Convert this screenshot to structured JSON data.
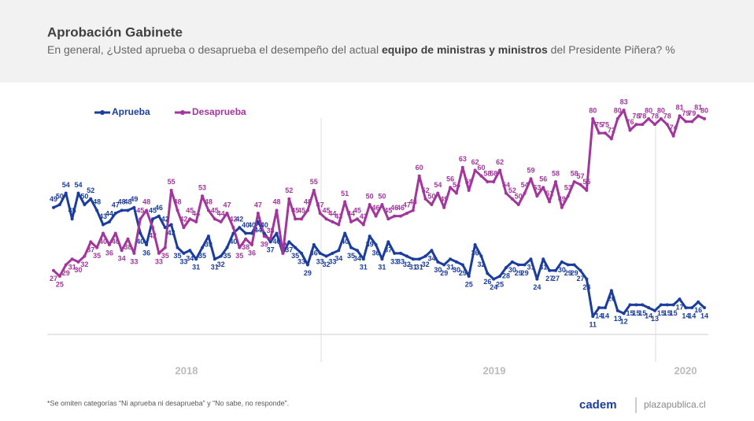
{
  "chart_data": {
    "type": "line",
    "title": "Aprobación Gabinete",
    "subtitle": [
      "En general, ¿Usted aprueba o desaprueba el desempeño del actual ",
      "equipo de ministras y ministros",
      " del Presidente Piñera? %"
    ],
    "categories": [
      null,
      null,
      null,
      null,
      null,
      null,
      null,
      null,
      null,
      null,
      null,
      null,
      null,
      null,
      null,
      null,
      null,
      null,
      null,
      null,
      null,
      null,
      null,
      null,
      null,
      null,
      null,
      null,
      null,
      null,
      null,
      null,
      null,
      null,
      null,
      null,
      null,
      null,
      null,
      null,
      null,
      null,
      null,
      null,
      null,
      null,
      null,
      null,
      null,
      null,
      null,
      null,
      null,
      null,
      null,
      null,
      null,
      null,
      null,
      null,
      null,
      null,
      null,
      null,
      null,
      null,
      null,
      null,
      null,
      null,
      null,
      null,
      null,
      null,
      null,
      null,
      null,
      null,
      null,
      null,
      null,
      null,
      null,
      null,
      null,
      null,
      null,
      null,
      null,
      null,
      null,
      null,
      null,
      null,
      null,
      null,
      null,
      null,
      null,
      null,
      null,
      null,
      null,
      null,
      null,
      null
    ],
    "series": [
      {
        "name": "Aprueba",
        "color": "#1b3d9e",
        "values": [
          49,
          50,
          54,
          45,
          54,
          50,
          52,
          48,
          43,
          44,
          47,
          48,
          48,
          49,
          40,
          36,
          45,
          46,
          42,
          43,
          35,
          33,
          34,
          31,
          35,
          39,
          31,
          32,
          35,
          40,
          42,
          40,
          40,
          44,
          40,
          37,
          40,
          33,
          37,
          35,
          33,
          29,
          36,
          33,
          32,
          33,
          34,
          40,
          35,
          34,
          31,
          39,
          36,
          31,
          37,
          33,
          33,
          32,
          31,
          31,
          32,
          34,
          30,
          29,
          31,
          30,
          29,
          25,
          36,
          32,
          26,
          24,
          25,
          28,
          30,
          29,
          29,
          31,
          24,
          31,
          27,
          27,
          30,
          29,
          29,
          27,
          24,
          11,
          14,
          14,
          20,
          13,
          12,
          15,
          15,
          15,
          14,
          13,
          15,
          15,
          15,
          17,
          14,
          14,
          16,
          14
        ]
      },
      {
        "name": "Desaprueba",
        "color": "#a2369c",
        "values": [
          27,
          25,
          29,
          31,
          30,
          32,
          37,
          35,
          40,
          36,
          40,
          34,
          38,
          33,
          45,
          48,
          42,
          33,
          35,
          55,
          48,
          42,
          45,
          44,
          53,
          48,
          45,
          44,
          47,
          42,
          35,
          38,
          36,
          47,
          39,
          38,
          48,
          33,
          52,
          45,
          45,
          48,
          55,
          47,
          45,
          44,
          43,
          51,
          44,
          45,
          43,
          50,
          46,
          50,
          45,
          46,
          46,
          47,
          48,
          60,
          52,
          50,
          54,
          49,
          56,
          54,
          63,
          55,
          62,
          60,
          58,
          58,
          62,
          54,
          52,
          50,
          54,
          59,
          53,
          56,
          51,
          58,
          49,
          53,
          58,
          57,
          55,
          80,
          75,
          75,
          73,
          80,
          83,
          76,
          78,
          78,
          80,
          78,
          80,
          78,
          74,
          81,
          79,
          79,
          81,
          80
        ]
      }
    ],
    "ylim": [
      0,
      90
    ],
    "years": [
      "2018",
      "2019",
      "2020"
    ],
    "footnote": "*Se omiten categorías “Ni aprueba ni desaprueba” y “No sabe, no responde”.",
    "brand": "cadem",
    "source": "plazapublica.cl"
  }
}
